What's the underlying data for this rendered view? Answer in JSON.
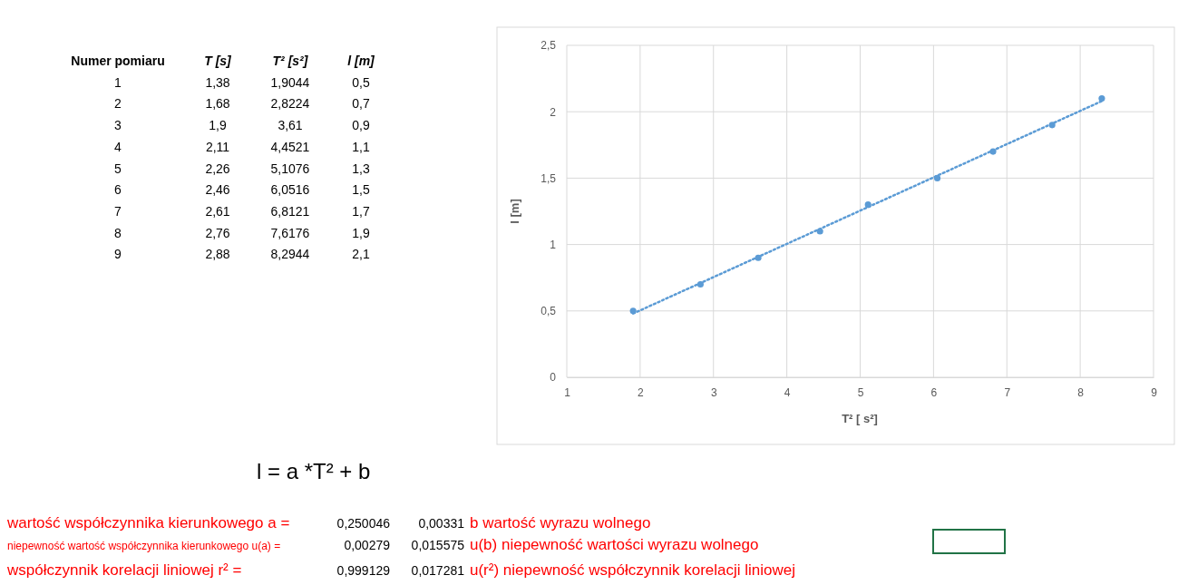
{
  "chart_data": {
    "type": "scatter",
    "xlabel": "T² [ s²]",
    "ylabel": "l [m]",
    "x": [
      1.9044,
      2.8224,
      3.61,
      4.4521,
      5.1076,
      6.0516,
      6.8121,
      7.6176,
      8.2944
    ],
    "series": [
      {
        "color": "#5b9bd5",
        "marker": "circle",
        "values": [
          0.5,
          0.7,
          0.9,
          1.1,
          1.3,
          1.5,
          1.7,
          1.9,
          2.1
        ]
      },
      {
        "type": "line",
        "color": "#5b9bd5",
        "line_style": "dotted",
        "x": [
          1.9044,
          8.2944
        ],
        "values": [
          0.48,
          2.08
        ]
      }
    ],
    "xlim": [
      1,
      9
    ],
    "xticks": [
      1,
      2,
      3,
      4,
      5,
      6,
      7,
      8,
      9
    ],
    "ylim": [
      0,
      2.5
    ],
    "yticks": [
      0,
      {
        "value": 0.5,
        "label": "0,5"
      },
      1,
      {
        "value": 1.5,
        "label": "1,5"
      },
      2,
      {
        "value": 2.5,
        "label": "2,5"
      }
    ],
    "grid": true,
    "annotations": [
      "Numer pomiaru",
      "T  [s]",
      "T² [s²]",
      "l  [m]",
      "1",
      "2",
      "3",
      "4",
      "5",
      "6",
      "7",
      "8",
      "9",
      "1,38",
      "1,68",
      "1,9",
      "2,11",
      "2,26",
      "2,46",
      "2,61",
      "2,76",
      "2,88",
      "1,9044",
      "2,8224",
      "3,61",
      "4,4521",
      "5,1076",
      "6,0516",
      "6,8121",
      "7,6176",
      "8,2944",
      "0,5",
      "0,7",
      "0,9",
      "1,1",
      "1,3",
      "1,5",
      "1,7",
      "1,9",
      "2,1",
      "l = a *T² + b",
      "wartość współczynnika kierunkowego a =",
      "0,250046",
      "0,00331",
      "b wartość wyrazu wolnego",
      "niepewność wartość współczynnika kierunkowego u(a) =",
      "0,00279",
      "0,015575",
      "u(b) niepewność wartości wyrazu wolnego",
      "współczynnik korelacji liniowej r² =",
      "0,999129",
      "0,017281",
      "u(r²) niepewność współczynnik korelacji liniowej"
    ]
  }
}
